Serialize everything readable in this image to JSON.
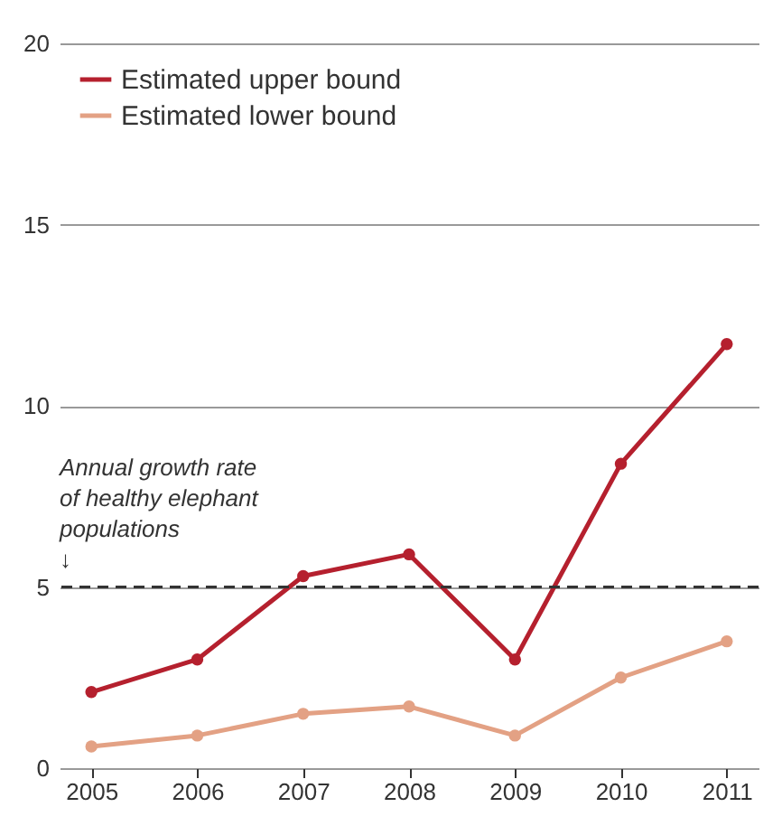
{
  "chart_data": {
    "type": "line",
    "categories": [
      "2005",
      "2006",
      "2007",
      "2008",
      "2009",
      "2010",
      "2011"
    ],
    "series": [
      {
        "name": "Estimated upper bound",
        "color": "#b5202e",
        "values": [
          2.1,
          3.0,
          5.3,
          5.9,
          3.0,
          8.4,
          11.7
        ]
      },
      {
        "name": "Estimated lower bound",
        "color": "#e3a184",
        "values": [
          0.6,
          0.9,
          1.5,
          1.7,
          0.9,
          2.5,
          3.5
        ]
      }
    ],
    "ylim": [
      0,
      20
    ],
    "yticks": [
      0,
      5,
      10,
      15,
      20
    ],
    "grid": "y",
    "legend": "top left",
    "marker": "circle",
    "line_style": "solid",
    "ref_lines": [
      {
        "axis": "y",
        "value": 5,
        "label": "Annual growth rate\nof healthy elephant\npopulations\n↓",
        "line_style": "dashed",
        "color": "#333333"
      }
    ]
  }
}
